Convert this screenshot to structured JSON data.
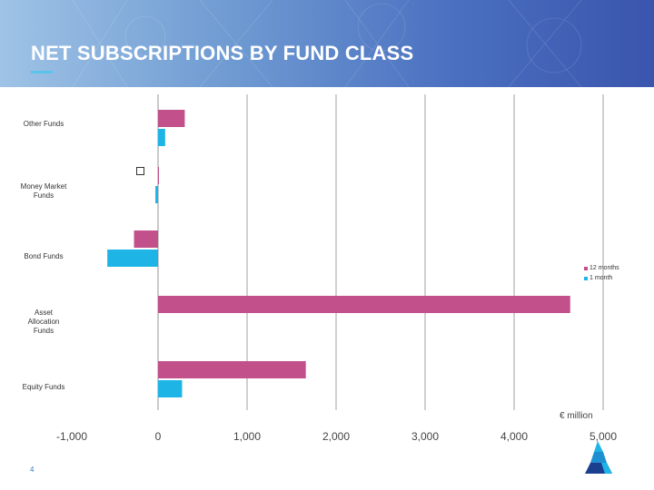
{
  "slide": {
    "title": "NET SUBSCRIPTIONS BY FUND CLASS",
    "page_number": "4",
    "unit_label": "€ million",
    "marker_symbol": ""
  },
  "colors": {
    "series_12_months": "#c2508a",
    "series_1_month": "#1eb4e6",
    "banner_accent": "#5ac4e8"
  },
  "chart_data": {
    "type": "bar",
    "orientation": "horizontal",
    "title": "NET SUBSCRIPTIONS BY FUND CLASS",
    "xlabel": "€ million",
    "ylabel": "",
    "xlim": [
      -1000,
      5000
    ],
    "xticks": [
      -1000,
      0,
      1000,
      2000,
      3000,
      4000,
      5000
    ],
    "tick_labels": [
      "-1,000",
      "0",
      "1,000",
      "2,000",
      "3,000",
      "4,000",
      "5,000"
    ],
    "grid": true,
    "legend_position": "right",
    "categories": [
      "Other Funds",
      "Money Market Funds",
      "Bond Funds",
      "Asset Allocation Funds",
      "Equity Funds"
    ],
    "category_labels": [
      [
        "Other Funds"
      ],
      [
        "Money Market",
        "Funds"
      ],
      [
        "Bond Funds"
      ],
      [
        "Asset",
        "Allocation",
        "Funds"
      ],
      [
        "Equity Funds"
      ]
    ],
    "series": [
      {
        "name": "12 months",
        "values": [
          300,
          10,
          -270,
          4630,
          1660
        ]
      },
      {
        "name": "1 month",
        "values": [
          80,
          -30,
          -570,
          0,
          270
        ]
      }
    ]
  }
}
